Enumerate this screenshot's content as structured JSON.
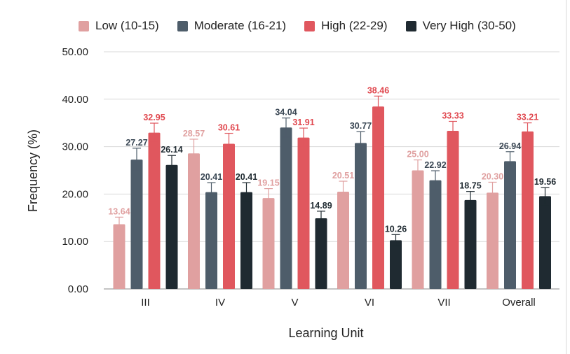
{
  "chart_data": {
    "type": "bar",
    "title": "",
    "xlabel": "Learning Unit",
    "ylabel": "Frequency (%)",
    "ylim": [
      0,
      50
    ],
    "yticks": [
      "0.00",
      "10.00",
      "20.00",
      "30.00",
      "40.00",
      "50.00"
    ],
    "grid": true,
    "legend_position": "top",
    "error_bars": true,
    "categories": [
      "III",
      "IV",
      "V",
      "VI",
      "VII",
      "Overall"
    ],
    "series": [
      {
        "name": "Low (10-15)",
        "color": "#e0a0a0",
        "values": [
          13.64,
          28.57,
          19.15,
          20.51,
          25.0,
          20.3
        ],
        "labels": [
          "13.64",
          "28.57",
          "19.15",
          "20.51",
          "25.00",
          "20.30"
        ],
        "error": [
          1.5,
          3.0,
          2.0,
          2.2,
          2.2,
          2.2
        ]
      },
      {
        "name": "Moderate (16-21)",
        "color": "#4e5d6a",
        "values": [
          27.27,
          20.41,
          34.04,
          30.77,
          22.92,
          26.94
        ],
        "labels": [
          "27.27",
          "20.41",
          "34.04",
          "30.77",
          "22.92",
          "26.94"
        ],
        "error": [
          2.4,
          2.0,
          2.0,
          2.4,
          2.0,
          2.0
        ]
      },
      {
        "name": "High (22-29)",
        "color": "#e0575e",
        "values": [
          32.95,
          30.61,
          31.91,
          38.46,
          33.33,
          33.21
        ],
        "labels": [
          "32.95",
          "30.61",
          "31.91",
          "38.46",
          "33.33",
          "33.21"
        ],
        "error": [
          2.0,
          2.2,
          2.0,
          2.2,
          2.0,
          1.8
        ]
      },
      {
        "name": "Very High (30-50)",
        "color": "#1f2a31",
        "values": [
          26.14,
          20.41,
          14.89,
          10.26,
          18.75,
          19.56
        ],
        "labels": [
          "26.14",
          "20.41",
          "14.89",
          "10.26",
          "18.75",
          "19.56"
        ],
        "error": [
          2.0,
          2.0,
          1.5,
          1.2,
          1.8,
          1.8
        ]
      }
    ],
    "label_colors": {
      "Low (10-15)": "#e0a0a0",
      "Moderate (16-21)": "#3a4754",
      "High (22-29)": "#e0474e",
      "Very High (30-50)": "#1f2a31"
    },
    "grid_color": "#d9d9d9",
    "axis_text_color": "#222222"
  }
}
